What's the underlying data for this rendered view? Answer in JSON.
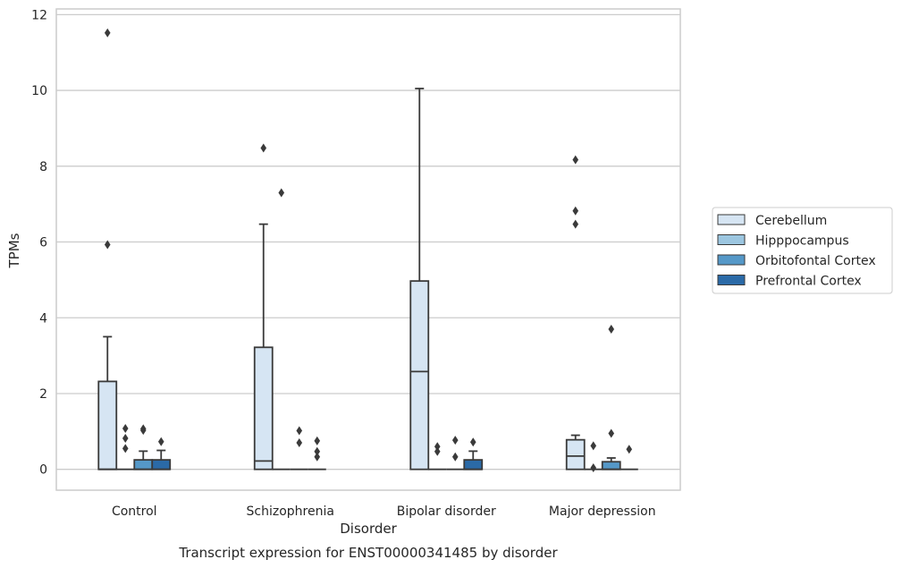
{
  "chart_data": {
    "type": "box",
    "xlabel": "Disorder",
    "ylabel": "TPMs",
    "caption": "Transcript expression for ENST00000341485 by disorder",
    "ylim": [
      -0.55,
      12.15
    ],
    "yticks": [
      0,
      2,
      4,
      6,
      8,
      10,
      12
    ],
    "grid": "y",
    "legend_position": "right",
    "categories": [
      "Control",
      "Schizophrenia",
      "Bipolar disorder",
      "Major depression"
    ],
    "series": [
      {
        "name": "Cerebellum",
        "color": "#d6e5f3",
        "boxes": [
          {
            "min": 0,
            "q1": 0,
            "median": 0,
            "q3": 2.32,
            "max": 3.5,
            "outliers": [
              5.93,
              11.52
            ]
          },
          {
            "min": 0,
            "q1": 0,
            "median": 0.22,
            "q3": 3.22,
            "max": 6.47,
            "outliers": [
              8.48
            ]
          },
          {
            "min": 0,
            "q1": 0,
            "median": 2.58,
            "q3": 4.97,
            "max": 10.05,
            "outliers": []
          },
          {
            "min": 0,
            "q1": 0,
            "median": 0.35,
            "q3": 0.78,
            "max": 0.9,
            "outliers": [
              6.47,
              6.82,
              8.17
            ]
          }
        ]
      },
      {
        "name": "Hipppocampus",
        "color": "#9cc6e0",
        "boxes": [
          {
            "min": 0,
            "q1": 0,
            "median": 0,
            "q3": 0,
            "max": 0,
            "outliers": [
              0.55,
              0.82,
              1.08
            ]
          },
          {
            "min": 0,
            "q1": 0,
            "median": 0,
            "q3": 0,
            "max": 0,
            "outliers": [
              7.3
            ]
          },
          {
            "min": 0,
            "q1": 0,
            "median": 0,
            "q3": 0,
            "max": 0,
            "outliers": [
              0.47,
              0.6
            ]
          },
          {
            "min": 0,
            "q1": 0,
            "median": 0,
            "q3": 0,
            "max": 0,
            "outliers": [
              0.04,
              0.62
            ]
          }
        ]
      },
      {
        "name": "Orbitofontal Cortex",
        "color": "#5598c8",
        "boxes": [
          {
            "min": 0,
            "q1": 0,
            "median": 0,
            "q3": 0.25,
            "max": 0.48,
            "outliers": [
              1.03,
              1.07
            ]
          },
          {
            "min": 0,
            "q1": 0,
            "median": 0,
            "q3": 0,
            "max": 0,
            "outliers": [
              0.7,
              1.02
            ]
          },
          {
            "min": 0,
            "q1": 0,
            "median": 0,
            "q3": 0,
            "max": 0,
            "outliers": [
              0.33,
              0.77
            ]
          },
          {
            "min": 0,
            "q1": 0,
            "median": 0,
            "q3": 0.2,
            "max": 0.3,
            "outliers": [
              0.95,
              3.7
            ]
          }
        ]
      },
      {
        "name": "Prefrontal Cortex",
        "color": "#2b6aa7",
        "boxes": [
          {
            "min": 0,
            "q1": 0,
            "median": 0,
            "q3": 0.25,
            "max": 0.5,
            "outliers": [
              0.73
            ]
          },
          {
            "min": 0,
            "q1": 0,
            "median": 0,
            "q3": 0,
            "max": 0,
            "outliers": [
              0.33,
              0.47,
              0.75
            ]
          },
          {
            "min": 0,
            "q1": 0,
            "median": 0,
            "q3": 0.25,
            "max": 0.48,
            "outliers": [
              0.72
            ]
          },
          {
            "min": 0,
            "q1": 0,
            "median": 0,
            "q3": 0,
            "max": 0,
            "outliers": [
              0.53
            ]
          }
        ]
      }
    ]
  }
}
